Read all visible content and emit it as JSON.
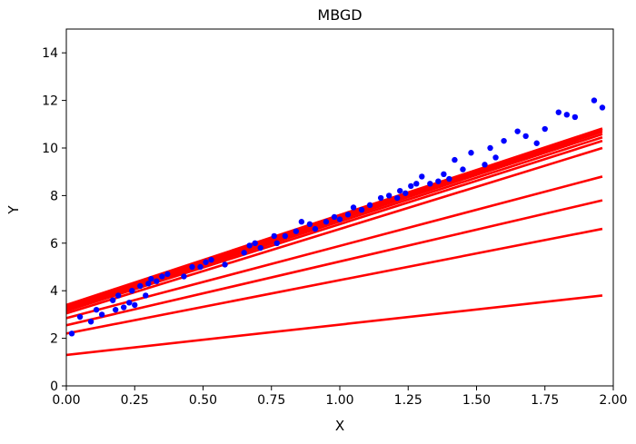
{
  "chart_data": {
    "type": "scatter",
    "title": "MBGD",
    "xlabel": "X",
    "ylabel": "Y",
    "xlim": [
      0,
      2.0
    ],
    "ylim": [
      0,
      15
    ],
    "xticks": [
      "0.00",
      "0.25",
      "0.50",
      "0.75",
      "1.00",
      "1.25",
      "1.50",
      "1.75",
      "2.00"
    ],
    "yticks": [
      "0",
      "2",
      "4",
      "6",
      "8",
      "10",
      "12",
      "14"
    ],
    "grid": false,
    "legend": "none",
    "colors": {
      "points": "#0000ff",
      "lines": "#ff0000"
    },
    "scatter": {
      "x": [
        0.02,
        0.05,
        0.09,
        0.11,
        0.13,
        0.17,
        0.18,
        0.19,
        0.21,
        0.23,
        0.24,
        0.25,
        0.27,
        0.29,
        0.3,
        0.31,
        0.33,
        0.35,
        0.37,
        0.43,
        0.46,
        0.49,
        0.51,
        0.53,
        0.58,
        0.65,
        0.67,
        0.69,
        0.71,
        0.76,
        0.77,
        0.8,
        0.84,
        0.86,
        0.89,
        0.91,
        0.95,
        0.98,
        1.0,
        1.03,
        1.05,
        1.08,
        1.11,
        1.15,
        1.18,
        1.21,
        1.22,
        1.24,
        1.26,
        1.28,
        1.3,
        1.33,
        1.36,
        1.38,
        1.4,
        1.42,
        1.45,
        1.48,
        1.53,
        1.55,
        1.57,
        1.6,
        1.65,
        1.68,
        1.72,
        1.75,
        1.8,
        1.83,
        1.86,
        1.93,
        1.96
      ],
      "y": [
        2.2,
        2.9,
        2.7,
        3.2,
        3.0,
        3.6,
        3.2,
        3.8,
        3.3,
        3.5,
        4.0,
        3.4,
        4.2,
        3.8,
        4.3,
        4.5,
        4.4,
        4.6,
        4.7,
        4.6,
        5.0,
        5.0,
        5.2,
        5.3,
        5.1,
        5.6,
        5.9,
        6.0,
        5.8,
        6.3,
        6.0,
        6.3,
        6.5,
        6.9,
        6.8,
        6.6,
        6.9,
        7.1,
        7.0,
        7.2,
        7.5,
        7.4,
        7.6,
        7.9,
        8.0,
        7.9,
        8.2,
        8.1,
        8.4,
        8.5,
        8.8,
        8.5,
        8.6,
        8.9,
        8.7,
        9.5,
        9.1,
        9.8,
        9.3,
        10.0,
        9.6,
        10.3,
        10.7,
        10.5,
        10.2,
        10.8,
        11.5,
        11.4,
        11.3,
        12.0,
        11.7
      ]
    },
    "lines": [
      {
        "x": [
          0,
          1.96
        ],
        "y": [
          1.3,
          3.8
        ]
      },
      {
        "x": [
          0,
          1.96
        ],
        "y": [
          2.2,
          6.6
        ]
      },
      {
        "x": [
          0,
          1.96
        ],
        "y": [
          2.55,
          7.8
        ]
      },
      {
        "x": [
          0,
          1.96
        ],
        "y": [
          2.85,
          8.8
        ]
      },
      {
        "x": [
          0,
          1.96
        ],
        "y": [
          3.05,
          10.0
        ]
      },
      {
        "x": [
          0,
          1.96
        ],
        "y": [
          3.15,
          10.3
        ]
      },
      {
        "x": [
          0,
          1.96
        ],
        "y": [
          3.22,
          10.45
        ]
      },
      {
        "x": [
          0,
          1.96
        ],
        "y": [
          3.28,
          10.58
        ]
      },
      {
        "x": [
          0,
          1.96
        ],
        "y": [
          3.33,
          10.68
        ]
      },
      {
        "x": [
          0,
          1.96
        ],
        "y": [
          3.37,
          10.76
        ]
      },
      {
        "x": [
          0,
          1.96
        ],
        "y": [
          3.4,
          10.82
        ]
      }
    ]
  }
}
